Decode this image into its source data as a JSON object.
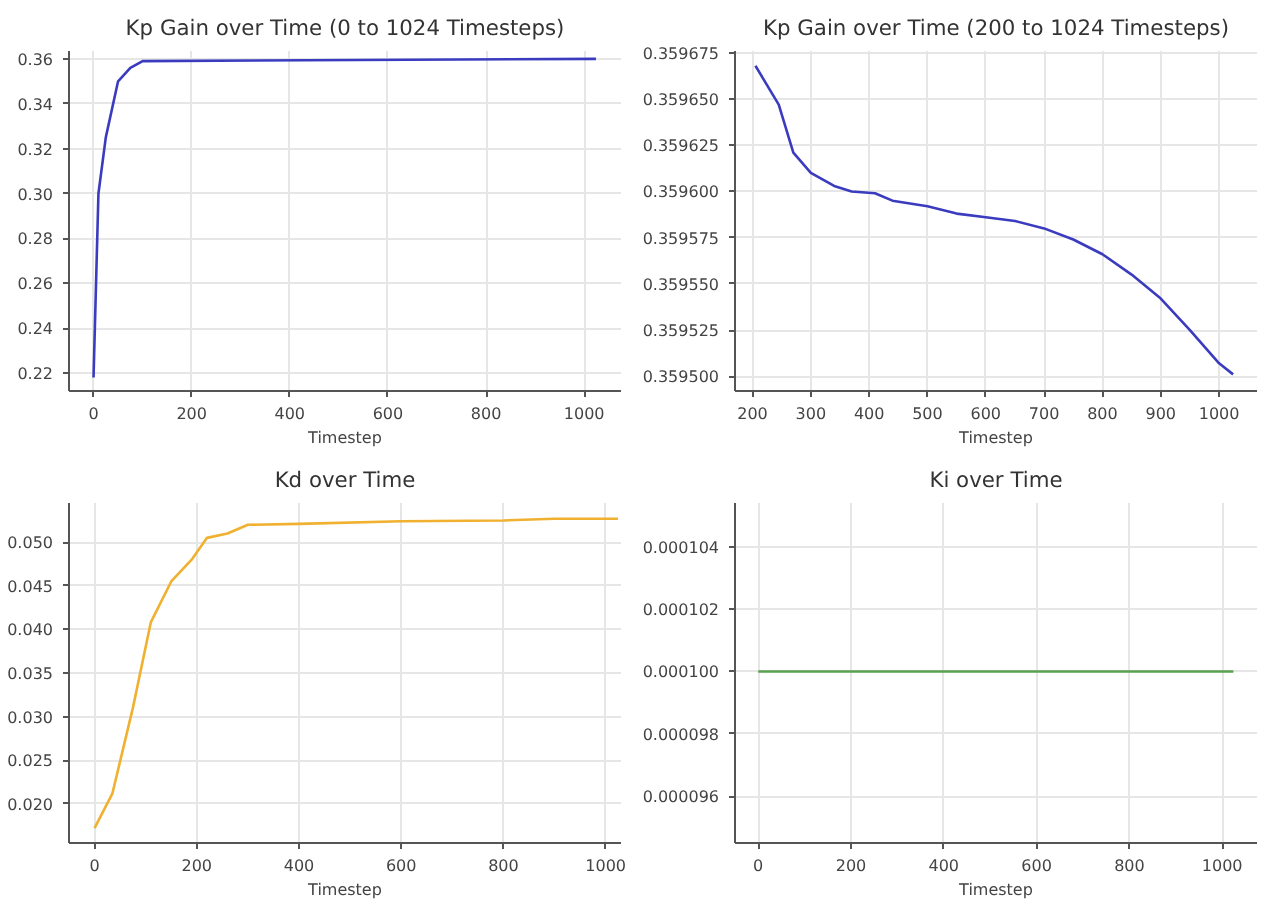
{
  "chart_data": [
    {
      "type": "line",
      "title": "Kp Gain over Time (0 to 1024 Timesteps)",
      "xlabel": "Timestep",
      "x": [
        0,
        10,
        25,
        50,
        75,
        100,
        1024
      ],
      "series": [
        {
          "color": "#3b3bbf",
          "values": [
            0.218,
            0.3,
            0.325,
            0.35,
            0.356,
            0.359,
            0.36
          ]
        }
      ],
      "xlim": [
        -50,
        1075
      ],
      "xticks": [
        0,
        200,
        400,
        600,
        800,
        1000
      ],
      "ylim": [
        0.212,
        0.3635
      ],
      "yticks": [
        0.22,
        0.24,
        0.26,
        0.28,
        {
          "value": 0.3,
          "label": "0.30"
        },
        0.32,
        0.34,
        0.36
      ],
      "grid": true,
      "line_style": "solid"
    },
    {
      "type": "line",
      "title": "Kp Gain over Time (200 to 1024 Timesteps)",
      "xlabel": "Timestep",
      "x": [
        205,
        245,
        270,
        300,
        340,
        370,
        410,
        440,
        500,
        550,
        600,
        650,
        700,
        750,
        800,
        850,
        900,
        950,
        1000,
        1024
      ],
      "series": [
        {
          "color": "#3b3bbf",
          "values": [
            0.359668,
            0.359647,
            0.359621,
            0.35961,
            0.359603,
            0.3596,
            0.359599,
            0.359595,
            0.359592,
            0.359588,
            0.359586,
            0.359584,
            0.35958,
            0.359574,
            0.359566,
            0.359555,
            0.359542,
            0.359525,
            0.359507,
            0.359501
          ]
        }
      ],
      "xlim": [
        170,
        1065
      ],
      "xticks": [
        200,
        300,
        400,
        500,
        600,
        700,
        800,
        900,
        1000
      ],
      "ylim": [
        0.359492,
        0.359676
      ],
      "yticks": [
        {
          "value": 0.3595,
          "label": "0.359500"
        },
        0.359525,
        {
          "value": 0.35955,
          "label": "0.359550"
        },
        0.359575,
        {
          "value": 0.3596,
          "label": "0.359600"
        },
        0.359625,
        {
          "value": 0.35965,
          "label": "0.359650"
        },
        0.359675
      ],
      "grid": true,
      "line_style": "solid"
    },
    {
      "type": "line",
      "title": "Kd over Time",
      "xlabel": "Timestep",
      "x": [
        0,
        35,
        75,
        110,
        150,
        190,
        220,
        260,
        300,
        400,
        600,
        800,
        900,
        1024
      ],
      "series": [
        {
          "color": "#f0b030",
          "values": [
            0.0172,
            0.0212,
            0.031,
            0.0408,
            0.0455,
            0.048,
            0.0505,
            0.051,
            0.052,
            0.0521,
            0.0524,
            0.0525,
            0.0527,
            0.0527
          ]
        }
      ],
      "xlim": [
        -50,
        1030
      ],
      "xticks": [
        0,
        200,
        400,
        600,
        800,
        1000
      ],
      "ylim": [
        0.0155,
        0.0545
      ],
      "yticks": [
        {
          "value": 0.02,
          "label": "0.020"
        },
        0.025,
        {
          "value": 0.03,
          "label": "0.030"
        },
        0.035,
        {
          "value": 0.04,
          "label": "0.040"
        },
        0.045,
        {
          "value": 0.05,
          "label": "0.050"
        }
      ],
      "grid": true,
      "line_style": "solid"
    },
    {
      "type": "line",
      "title": "Ki over Time",
      "xlabel": "Timestep",
      "x": [
        0,
        1024
      ],
      "series": [
        {
          "color": "#5aa050",
          "values": [
            0.0001,
            0.0001
          ]
        }
      ],
      "xlim": [
        -50,
        1075
      ],
      "xticks": [
        0,
        200,
        400,
        600,
        800,
        1000
      ],
      "ylim": [
        9.45e-05,
        0.0001054
      ],
      "yticks": [
        {
          "value": 9.6e-05,
          "label": "0.000096"
        },
        {
          "value": 9.8e-05,
          "label": "0.000098"
        },
        {
          "value": 0.0001,
          "label": "0.000100"
        },
        {
          "value": 0.000102,
          "label": "0.000102"
        },
        {
          "value": 0.000104,
          "label": "0.000104"
        }
      ],
      "grid": true,
      "line_style": "solid"
    }
  ]
}
